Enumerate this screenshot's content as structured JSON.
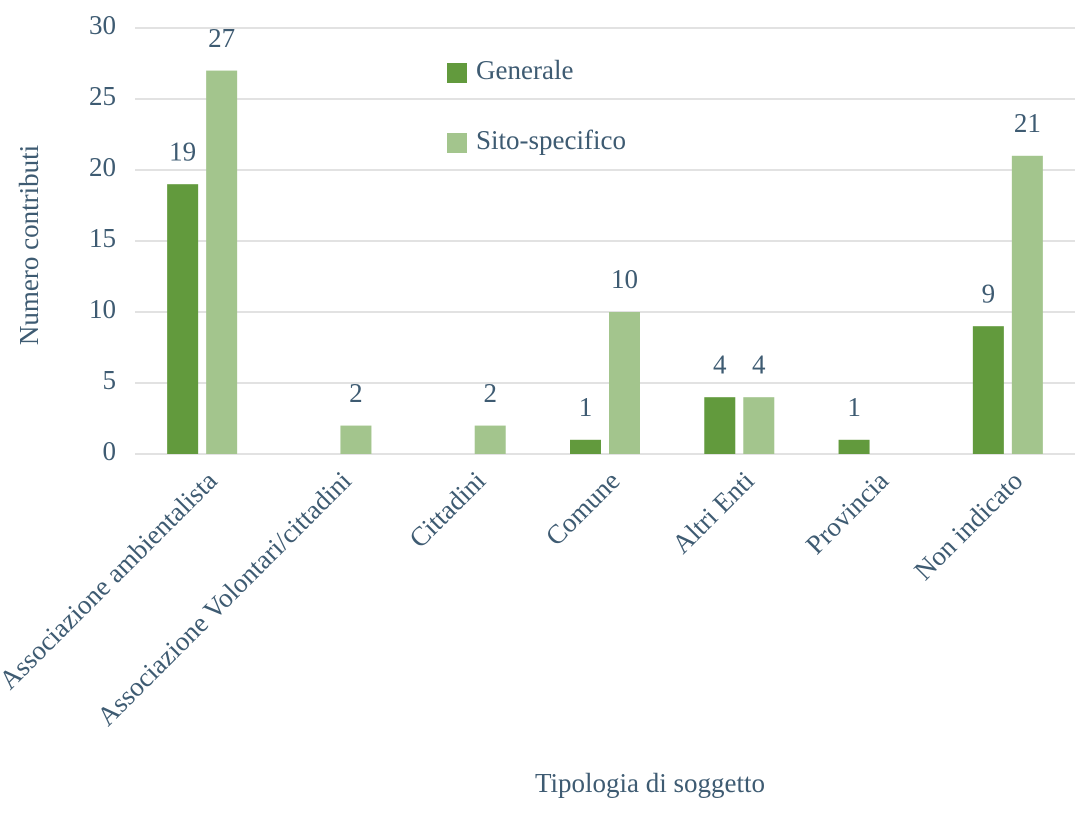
{
  "chart_data": {
    "type": "bar",
    "y_axis_label": "Numero contributi",
    "x_axis_label": "Tipologia di soggetto",
    "categories": [
      "Associazione ambientalista",
      "Associazione Volontari/cittadini",
      "Cittadini",
      "Comune",
      "Altri Enti",
      "Provincia",
      "Non indicato"
    ],
    "series": [
      {
        "name": "Generale",
        "color": "#629a3d",
        "values": [
          19,
          null,
          null,
          1,
          4,
          1,
          9
        ]
      },
      {
        "name": "Sito-specifico",
        "color": "#a3c58d",
        "values": [
          27,
          2,
          2,
          10,
          4,
          null,
          21
        ]
      }
    ],
    "ylim": [
      0,
      30
    ],
    "yticks": [
      0,
      5,
      10,
      15,
      20,
      25,
      30
    ],
    "grid": true
  }
}
